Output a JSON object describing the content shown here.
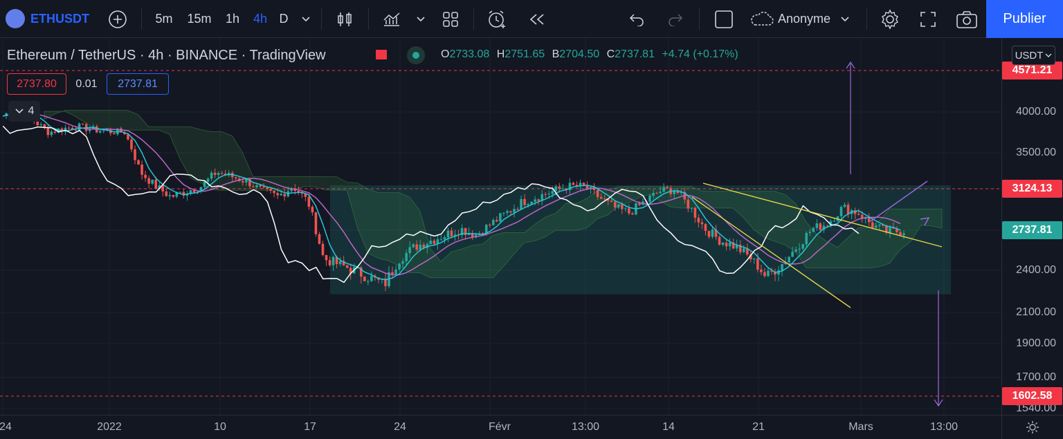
{
  "toolbar": {
    "symbol": "ETHUSDT",
    "timeframes": [
      "5m",
      "15m",
      "1h",
      "4h",
      "D"
    ],
    "active_timeframe": "4h",
    "layout_name": "Anonyme",
    "publish_label": "Publier"
  },
  "legend": {
    "title": "Ethereum / TetherUS · 4h · BINANCE · TradingView",
    "o_label": "O",
    "o": "2733.08",
    "h_label": "H",
    "h": "2751.65",
    "l_label": "B",
    "l": "2704.50",
    "c_label": "C",
    "c": "2737.81",
    "change": "+4.74 (+0.17%)",
    "bid": "2737.80",
    "spread": "0.01",
    "ask": "2737.81",
    "indicators_count": "4"
  },
  "price_axis": {
    "currency": "USDT",
    "labels": [
      "4000.00",
      "3500.00",
      "2400.00",
      "2100.00",
      "1900.00",
      "1700.00",
      "1540.00"
    ],
    "tags": [
      {
        "value": "4571.21",
        "color": "#f23645"
      },
      {
        "value": "3124.13",
        "color": "#f23645"
      },
      {
        "value": "2737.81",
        "color": "#26a69a"
      },
      {
        "value": "1602.58",
        "color": "#f23645"
      }
    ]
  },
  "time_axis": {
    "labels": [
      "24",
      "2022",
      "10",
      "17",
      "24",
      "Févr",
      "13:00",
      "14",
      "21",
      "Mars",
      "13:00"
    ]
  },
  "chart_data": {
    "type": "candlestick",
    "symbol": "ETHUSDT",
    "interval": "4h",
    "last_close": 2737.81,
    "price_range_visible": [
      1540,
      4571.21
    ],
    "horizontal_levels": [
      4571.21,
      3124.13,
      1602.58
    ],
    "range_box": {
      "top": 3160,
      "bottom": 2230
    },
    "approx_closes": [
      3950,
      4080,
      3900,
      3750,
      3800,
      3820,
      3780,
      3760,
      3750,
      3300,
      3150,
      3050,
      3100,
      3150,
      3300,
      3250,
      3200,
      3100,
      3050,
      3150,
      3000,
      2500,
      2450,
      2400,
      2350,
      2300,
      2500,
      2600,
      2650,
      2700,
      2750,
      2700,
      2800,
      2900,
      3000,
      3050,
      3100,
      3150,
      3150,
      3050,
      2950,
      2900,
      3000,
      3100,
      3120,
      2950,
      2750,
      2650,
      2600,
      2500,
      2350,
      2450,
      2600,
      2750,
      2800,
      2950,
      2900,
      2780,
      2720,
      2737.81
    ],
    "ichimoku_cloud": true,
    "grid": true
  }
}
